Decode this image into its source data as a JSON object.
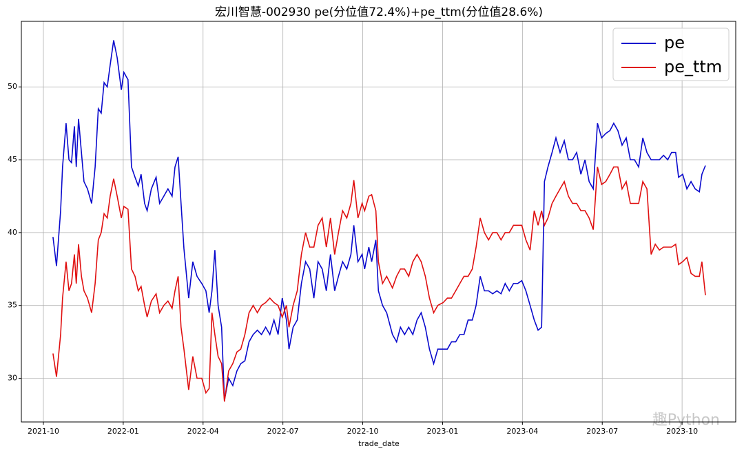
{
  "chart_data": {
    "type": "line",
    "title": "宏川智慧-002930 pe(分位值72.4%)+pe_ttm(分位值28.6%)",
    "x_label": "trade_date",
    "watermark": "趣Python",
    "x": [
      2021.78,
      2021.791,
      2021.804,
      2021.81,
      2021.821,
      2021.83,
      2021.838,
      2021.847,
      2021.853,
      2021.86,
      2021.869,
      2021.877,
      2021.888,
      2021.901,
      2021.912,
      2021.922,
      2021.931,
      2021.94,
      2021.95,
      2021.959,
      2021.97,
      2021.981,
      2021.994,
      2022.002,
      2022.015,
      2022.026,
      2022.037,
      2022.047,
      2022.056,
      2022.067,
      2022.075,
      2022.088,
      2022.103,
      2022.114,
      2022.127,
      2022.14,
      2022.153,
      2022.162,
      2022.172,
      2022.181,
      2022.19,
      2022.205,
      2022.218,
      2022.231,
      2022.246,
      2022.259,
      2022.269,
      2022.278,
      2022.287,
      2022.297,
      2022.308,
      2022.317,
      2022.33,
      2022.343,
      2022.356,
      2022.368,
      2022.381,
      2022.394,
      2022.407,
      2022.42,
      2022.433,
      2022.446,
      2022.459,
      2022.472,
      2022.485,
      2022.498,
      2022.511,
      2022.519,
      2022.532,
      2022.545,
      2022.558,
      2022.571,
      2022.584,
      2022.597,
      2022.61,
      2022.623,
      2022.636,
      2022.649,
      2022.662,
      2022.674,
      2022.687,
      2022.7,
      2022.713,
      2022.722,
      2022.735,
      2022.748,
      2022.756,
      2022.769,
      2022.778,
      2022.791,
      2022.799,
      2022.812,
      2022.825,
      2022.843,
      2022.856,
      2022.868,
      2022.881,
      2022.894,
      2022.907,
      2022.92,
      2022.933,
      2022.946,
      2022.959,
      2022.972,
      2022.985,
      2023.002,
      2023.015,
      2023.028,
      2023.041,
      2023.054,
      2023.067,
      2023.08,
      2023.093,
      2023.105,
      2023.118,
      2023.131,
      2023.144,
      2023.157,
      2023.17,
      2023.183,
      2023.196,
      2023.209,
      2023.222,
      2023.235,
      2023.248,
      2023.261,
      2023.274,
      2023.287,
      2023.299,
      2023.31,
      2023.319,
      2023.33,
      2023.343,
      2023.355,
      2023.368,
      2023.381,
      2023.394,
      2023.407,
      2023.42,
      2023.433,
      2023.446,
      2023.459,
      2023.472,
      2023.485,
      2023.498,
      2023.511,
      2023.524,
      2023.536,
      2023.549,
      2023.562,
      2023.575,
      2023.588,
      2023.601,
      2023.614,
      2023.627,
      2023.64,
      2023.653,
      2023.666,
      2023.679,
      2023.692,
      2023.705,
      2023.717,
      2023.73,
      2023.739,
      2023.752,
      2023.765,
      2023.778,
      2023.791,
      2023.804,
      2023.812,
      2023.823
    ],
    "series": [
      {
        "name": "pe",
        "color": "#0a0acd",
        "values": [
          39.7,
          37.7,
          41.5,
          44.5,
          47.5,
          45,
          44.8,
          47.3,
          44.5,
          47.8,
          45.5,
          43.5,
          43,
          42,
          44.5,
          48.5,
          48.2,
          50.3,
          50,
          51.5,
          53.2,
          52,
          49.8,
          51,
          50.5,
          44.5,
          43.8,
          43.2,
          44,
          42,
          41.5,
          43,
          43.8,
          42,
          42.5,
          43,
          42.5,
          44.5,
          45.2,
          42,
          38.9,
          35.5,
          38,
          37,
          36.5,
          36,
          34.5,
          36,
          38.8,
          35,
          33.5,
          28.5,
          30,
          29.5,
          30.5,
          31,
          31.2,
          32.5,
          33,
          33.3,
          33,
          33.5,
          33,
          34,
          33,
          35.5,
          34,
          32,
          33.5,
          34,
          36.5,
          38,
          37.5,
          35.5,
          38,
          37.5,
          36,
          38.5,
          36,
          37,
          38,
          37.5,
          38.5,
          40.5,
          38,
          38.5,
          37.5,
          39,
          38,
          39.5,
          36,
          35,
          34.5,
          33,
          32.5,
          33.5,
          33,
          33.5,
          33,
          34,
          34.5,
          33.5,
          32,
          31,
          32,
          32,
          32,
          32.5,
          32.5,
          33,
          33,
          34,
          34,
          35,
          37,
          36,
          36,
          35.8,
          36,
          35.8,
          36.5,
          36,
          36.5,
          36.5,
          36.7,
          36,
          35,
          34,
          33.3,
          33.5,
          43.5,
          44.5,
          45.5,
          46.5,
          45.5,
          46.3,
          45,
          45,
          45.5,
          44,
          45,
          43.5,
          43,
          47.5,
          46.5,
          46.8,
          47,
          47.5,
          47,
          46,
          46.5,
          45,
          45,
          44.5,
          46.5,
          45.5,
          45,
          45,
          45,
          45.3,
          45,
          45.5,
          45.5,
          43.8,
          44,
          43,
          43.5,
          43,
          42.8,
          44,
          44.6
        ]
      },
      {
        "name": "pe_ttm",
        "color": "#e01010",
        "values": [
          31.7,
          30.1,
          33,
          35.5,
          38,
          36,
          36.5,
          38.5,
          36.5,
          39.2,
          37,
          36,
          35.5,
          34.5,
          36.5,
          39.5,
          40,
          41.3,
          41,
          42.5,
          43.7,
          42.5,
          41,
          41.8,
          41.6,
          37.5,
          37,
          36,
          36.3,
          35,
          34.2,
          35.3,
          35.8,
          34.5,
          35,
          35.3,
          34.8,
          36,
          37,
          33.5,
          32,
          29.2,
          31.5,
          30,
          30,
          29,
          29.3,
          34.5,
          33,
          31.5,
          31,
          28.4,
          30.5,
          31,
          31.8,
          32,
          33,
          34.5,
          35,
          34.5,
          35,
          35.2,
          35.5,
          35.2,
          35,
          34.2,
          35,
          33.5,
          35,
          36,
          38.5,
          40,
          39,
          39,
          40.5,
          41,
          39,
          41,
          38.5,
          40,
          41.5,
          41,
          42,
          43.6,
          41,
          42,
          41.5,
          42.5,
          42.6,
          41.5,
          38,
          36.5,
          37,
          36.2,
          37,
          37.5,
          37.5,
          37,
          38,
          38.5,
          38,
          37,
          35.5,
          34.5,
          35,
          35.2,
          35.5,
          35.5,
          36,
          36.5,
          37,
          37,
          37.5,
          39,
          41,
          40,
          39.5,
          40,
          40,
          39.5,
          40,
          40,
          40.5,
          40.5,
          40.5,
          39.5,
          38.8,
          41.5,
          40.5,
          41.5,
          40.5,
          41,
          42,
          42.5,
          43,
          43.5,
          42.5,
          42,
          42,
          41.5,
          41.5,
          41,
          40.2,
          44.5,
          43.3,
          43.5,
          44,
          44.5,
          44.5,
          43,
          43.5,
          42,
          42,
          42,
          43.5,
          43,
          38.5,
          39.2,
          38.8,
          39,
          39,
          39,
          39.2,
          37.8,
          38,
          38.3,
          37.2,
          37,
          37,
          38,
          35.7
        ]
      }
    ],
    "xlim": [
      2021.681,
      2023.918
    ],
    "xticks": [
      {
        "value": 2021.75,
        "label": "2021-10"
      },
      {
        "value": 2022.0,
        "label": "2022-01"
      },
      {
        "value": 2022.25,
        "label": "2022-04"
      },
      {
        "value": 2022.5,
        "label": "2022-07"
      },
      {
        "value": 2022.75,
        "label": "2022-10"
      },
      {
        "value": 2023.0,
        "label": "2023-01"
      },
      {
        "value": 2023.25,
        "label": "2023-04"
      },
      {
        "value": 2023.5,
        "label": "2023-07"
      },
      {
        "value": 2023.75,
        "label": "2023-10"
      }
    ],
    "ylim": [
      27.0,
      54.5
    ],
    "yticks": [
      30,
      35,
      40,
      45,
      50
    ],
    "grid": true,
    "legend": "upper right"
  }
}
